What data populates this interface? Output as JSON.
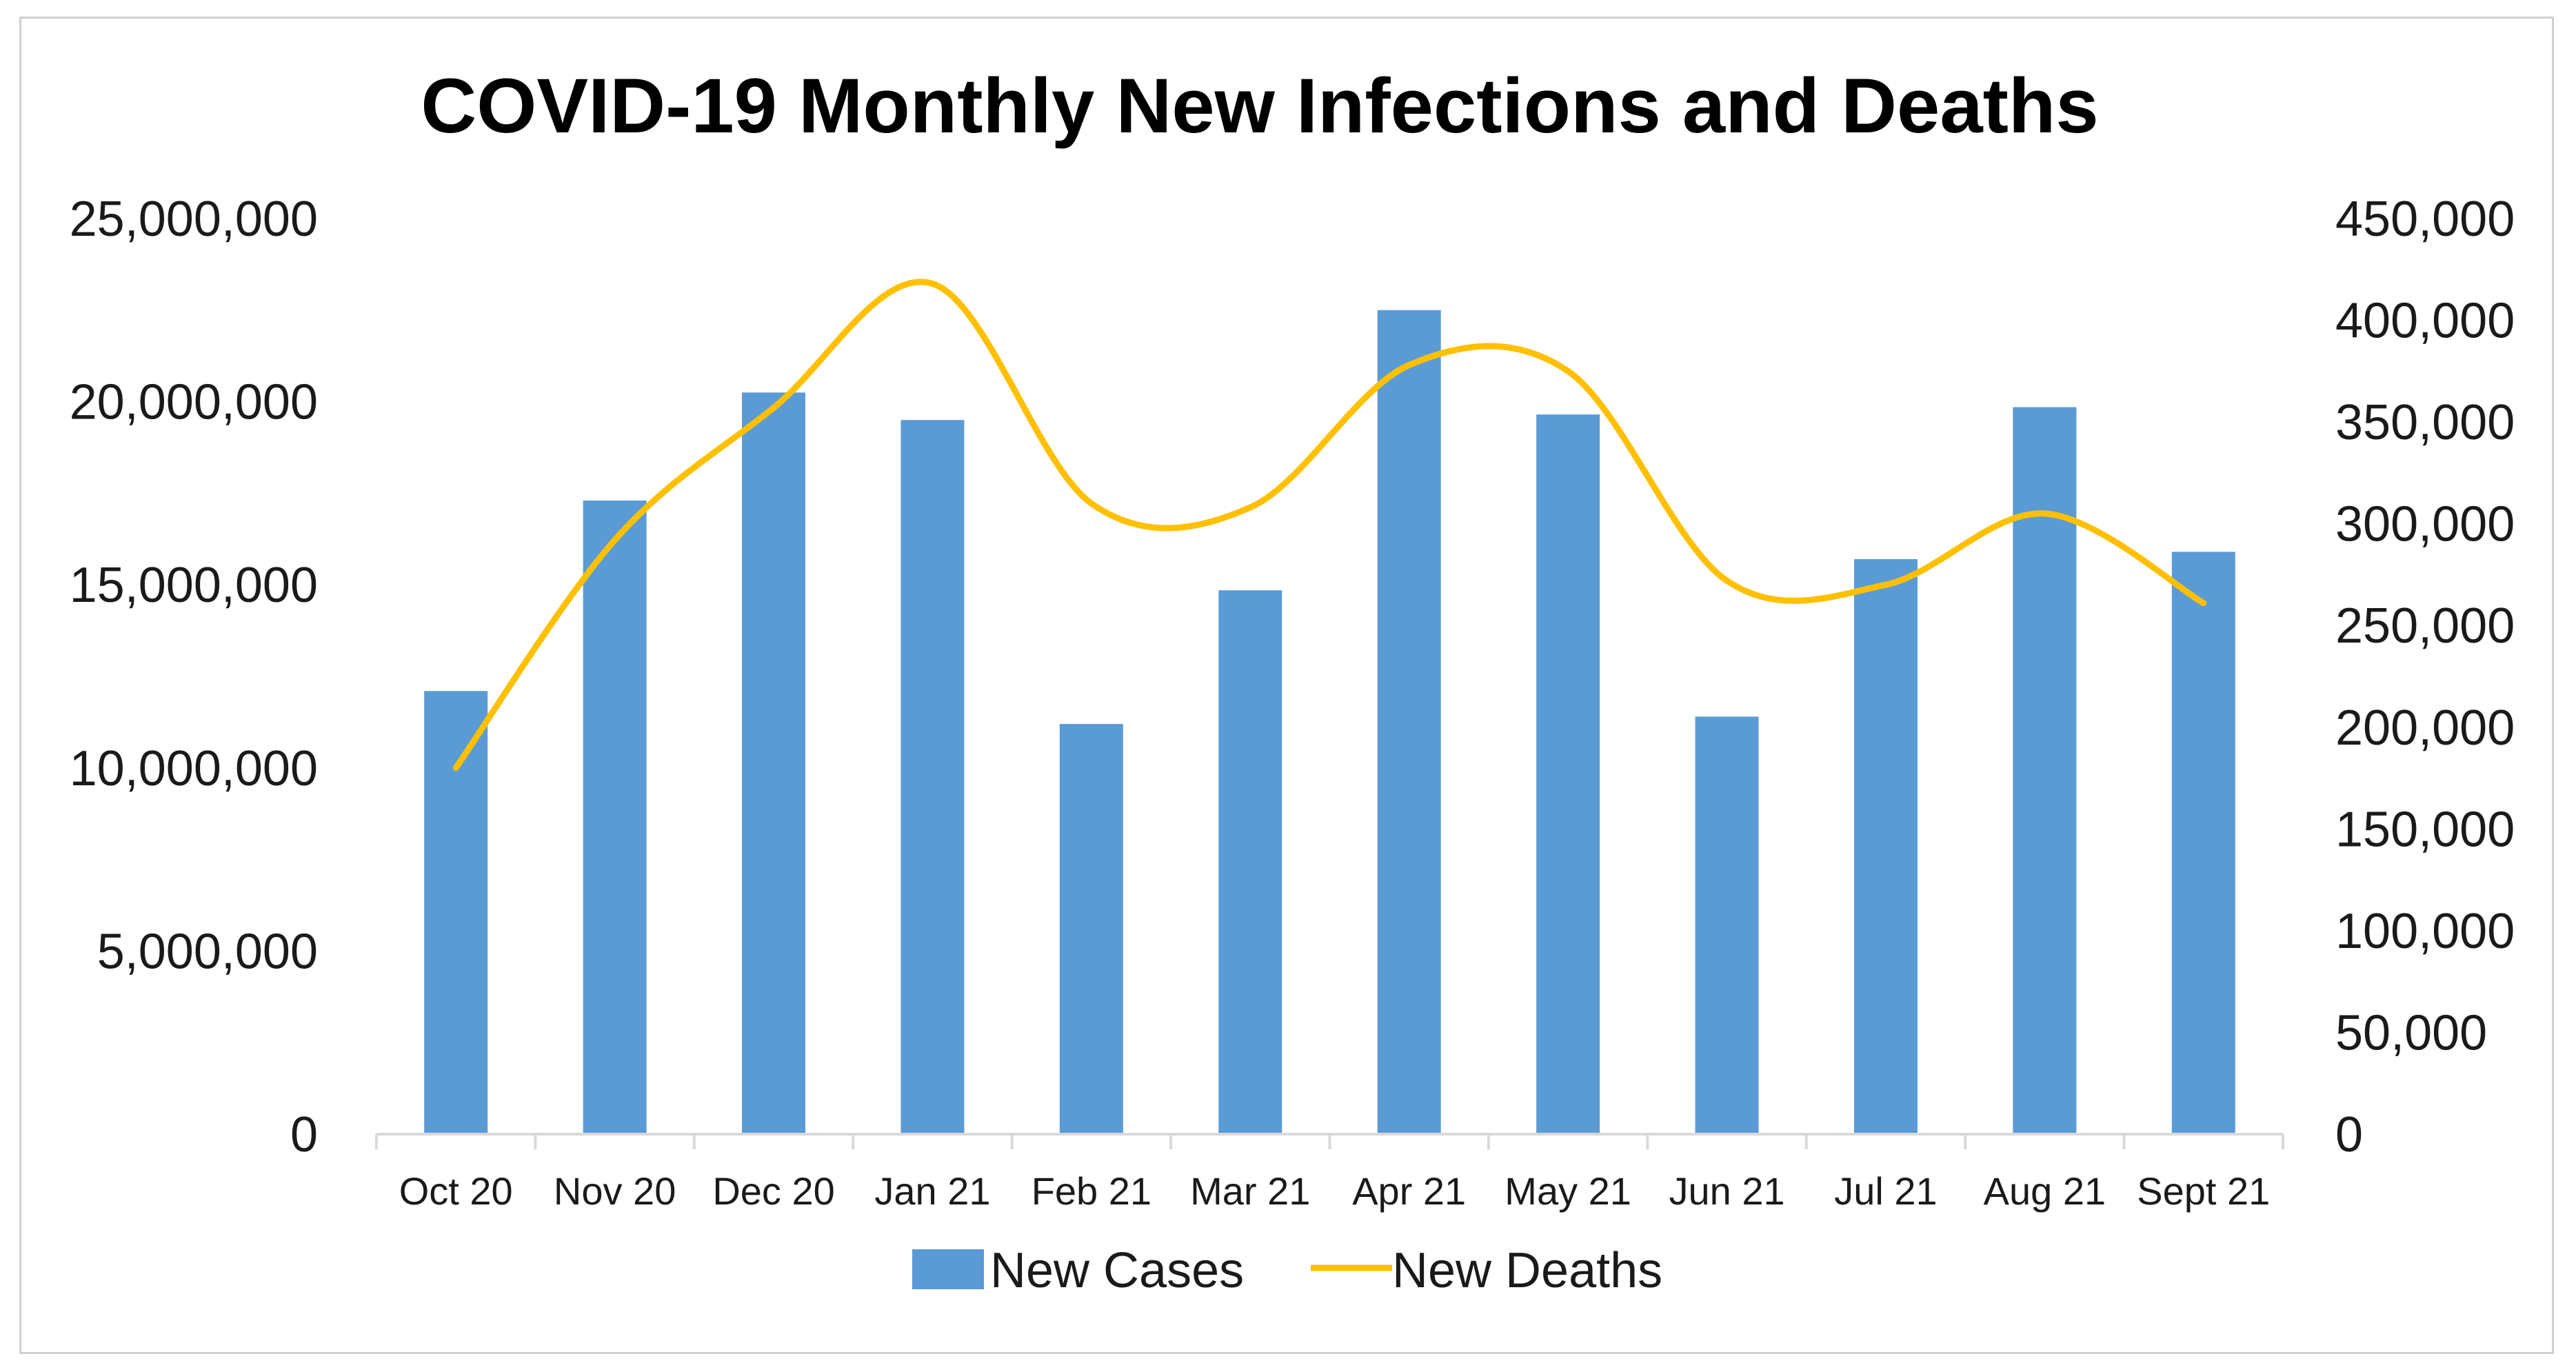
{
  "chart_data": {
    "type": "bar",
    "title": "COVID-19 Monthly New Infections and Deaths",
    "categories": [
      "Oct 20",
      "Nov 20",
      "Dec 20",
      "Jan 21",
      "Feb 21",
      "Mar 21",
      "Apr 21",
      "May 21",
      "Jun 21",
      "Jul 21",
      "Aug 21",
      "Sept 21"
    ],
    "series": [
      {
        "name": "New Cases",
        "type": "bar",
        "axis": "left",
        "color": "#5B9BD5",
        "values": [
          12100000,
          17300000,
          20250000,
          19500000,
          11200000,
          14850000,
          22500000,
          19650000,
          11400000,
          15700000,
          19850000,
          15900000
        ]
      },
      {
        "name": "New Deaths",
        "type": "line",
        "axis": "right",
        "smooth": true,
        "color": "#FFC000",
        "values": [
          180000,
          292000,
          357000,
          418000,
          310000,
          308000,
          378000,
          375000,
          272000,
          270000,
          305000,
          261000
        ]
      }
    ],
    "y_left": {
      "min": 0,
      "max": 25000000,
      "ticks": [
        0,
        5000000,
        10000000,
        15000000,
        20000000,
        25000000
      ],
      "tick_labels": [
        "0",
        "5,000,000",
        "10,000,000",
        "15,000,000",
        "20,000,000",
        "25,000,000"
      ]
    },
    "y_right": {
      "min": 0,
      "max": 450000,
      "ticks": [
        0,
        50000,
        100000,
        150000,
        200000,
        250000,
        300000,
        350000,
        400000,
        450000
      ],
      "tick_labels": [
        "0",
        "50,000",
        "100,000",
        "150,000",
        "200,000",
        "250,000",
        "300,000",
        "350,000",
        "400,000",
        "450,000"
      ]
    },
    "xlabel": "",
    "grid": false,
    "legend_position": "bottom-center",
    "axis_color": "#d9d9d9"
  }
}
